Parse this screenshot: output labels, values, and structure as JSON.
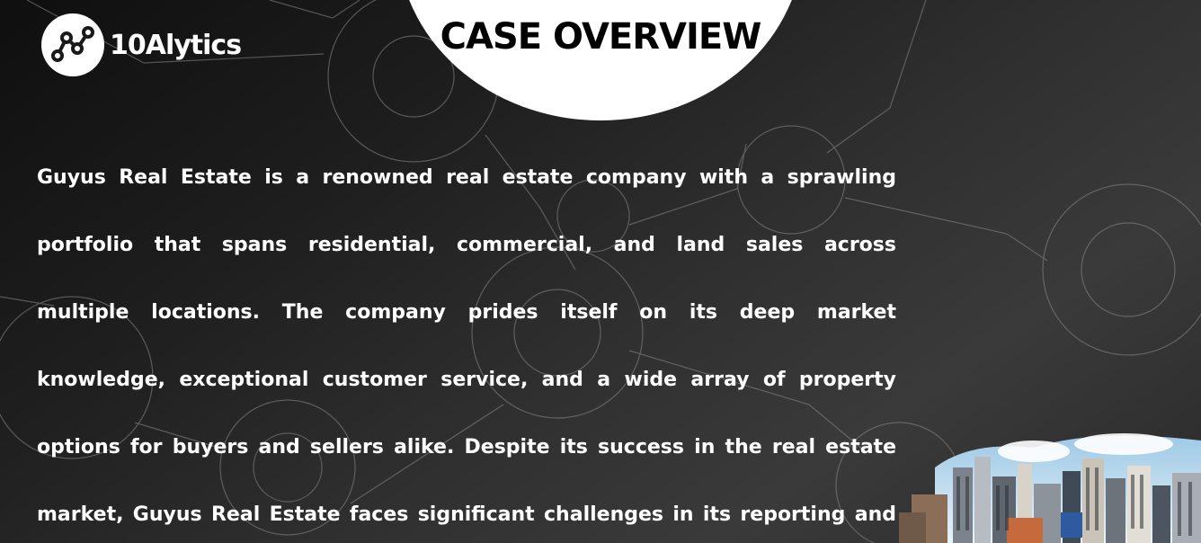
{
  "brand": {
    "name": "10Alytics"
  },
  "slide": {
    "title": "CASE OVERVIEW",
    "body_lines": [
      "Guyus Real Estate is a renowned real estate company with a sprawling",
      "portfolio that spans residential, commercial, and land sales across",
      "multiple locations. The company prides itself on its deep market",
      "knowledge, exceptional customer service, and a wide array of property",
      "options for buyers and sellers alike. Despite its success in the real estate",
      "market, Guyus Real Estate faces significant challenges in its reporting and"
    ]
  },
  "icons": [
    "analytics-logo-icon",
    "city-skyline-illustration"
  ],
  "colors": {
    "background_dark": "#1e1e1e",
    "text": "#ffffff",
    "title_text": "#000000",
    "title_cap": "#ffffff"
  }
}
